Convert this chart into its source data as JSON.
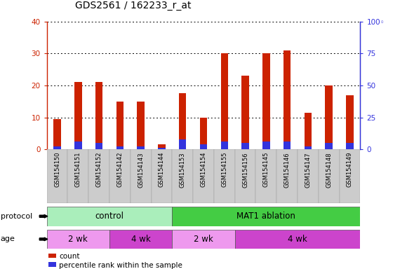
{
  "title": "GDS2561 / 162233_r_at",
  "samples": [
    "GSM154150",
    "GSM154151",
    "GSM154152",
    "GSM154142",
    "GSM154143",
    "GSM154144",
    "GSM154153",
    "GSM154154",
    "GSM154155",
    "GSM154156",
    "GSM154145",
    "GSM154146",
    "GSM154147",
    "GSM154148",
    "GSM154149"
  ],
  "count_values": [
    9.5,
    21.0,
    21.0,
    15.0,
    15.0,
    1.5,
    17.5,
    10.0,
    30.0,
    23.0,
    30.0,
    31.0,
    11.5,
    20.0,
    17.0
  ],
  "blue_values": [
    0.8,
    2.5,
    2.0,
    1.0,
    0.8,
    0.5,
    3.0,
    1.5,
    2.5,
    2.0,
    2.5,
    2.5,
    1.0,
    2.0,
    2.0
  ],
  "ylim_left": [
    0,
    40
  ],
  "ylim_right": [
    0,
    100
  ],
  "yticks_left": [
    0,
    10,
    20,
    30,
    40
  ],
  "yticks_right": [
    0,
    25,
    50,
    75,
    100
  ],
  "ytick_labels_right": [
    "0",
    "25",
    "50",
    "75",
    "100◦"
  ],
  "ytick_labels_left": [
    "0",
    "10",
    "20",
    "30",
    "40"
  ],
  "bar_color_red": "#cc2200",
  "bar_color_blue": "#3333dd",
  "grid_color": "#000000",
  "plot_bg": "#ffffff",
  "xticklabel_bg": "#cccccc",
  "protocol_colors": [
    "#aaeebb",
    "#44cc44"
  ],
  "age_colors": [
    "#ee88ee",
    "#cc44cc"
  ],
  "protocol_groups": [
    {
      "label": "control",
      "start": 0,
      "end": 6,
      "color": "#aaeebb"
    },
    {
      "label": "MAT1 ablation",
      "start": 6,
      "end": 15,
      "color": "#44cc44"
    }
  ],
  "age_groups": [
    {
      "label": "2 wk",
      "start": 0,
      "end": 3,
      "color": "#ee99ee"
    },
    {
      "label": "4 wk",
      "start": 3,
      "end": 6,
      "color": "#cc44cc"
    },
    {
      "label": "2 wk",
      "start": 6,
      "end": 9,
      "color": "#ee99ee"
    },
    {
      "label": "4 wk",
      "start": 9,
      "end": 15,
      "color": "#cc44cc"
    }
  ],
  "legend_items": [
    {
      "label": "count",
      "color": "#cc2200"
    },
    {
      "label": "percentile rank within the sample",
      "color": "#3333dd"
    }
  ],
  "left_axis_color": "#cc2200",
  "right_axis_color": "#3333dd",
  "title_fontsize": 10,
  "tick_fontsize": 7.5,
  "label_fontsize": 8.5,
  "bar_width": 0.35
}
